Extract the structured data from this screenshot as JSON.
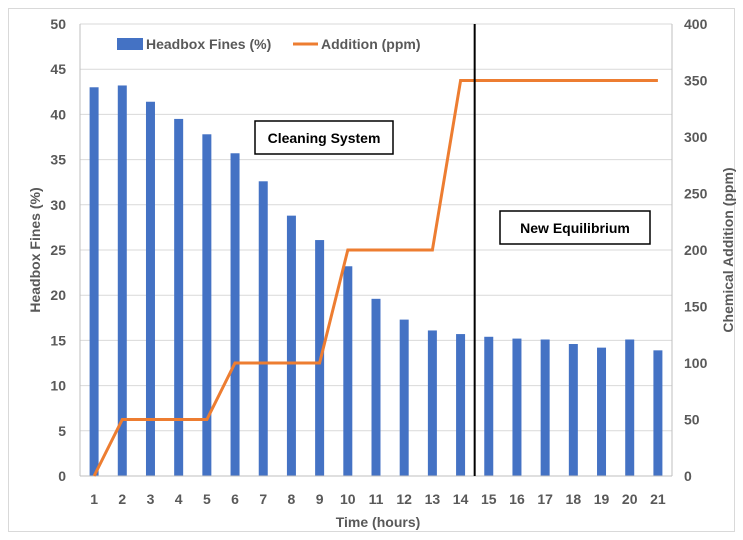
{
  "chart_data": {
    "type": "bar",
    "title": "",
    "xlabel": "Time (hours)",
    "ylabel": "Headbox Fines (%)",
    "y2label": "Chemical Addition (ppm)",
    "categories": [
      "1",
      "2",
      "3",
      "4",
      "5",
      "6",
      "7",
      "8",
      "9",
      "10",
      "11",
      "12",
      "13",
      "14",
      "15",
      "16",
      "17",
      "18",
      "19",
      "20",
      "21"
    ],
    "ylim": [
      0,
      50
    ],
    "yticks": [
      0,
      5,
      10,
      15,
      20,
      25,
      30,
      35,
      40,
      45,
      50
    ],
    "y2lim": [
      0,
      400
    ],
    "y2ticks": [
      0,
      50,
      100,
      150,
      200,
      250,
      300,
      350,
      400
    ],
    "grid": true,
    "legend_position": "top-left",
    "series": [
      {
        "name": "Headbox Fines (%)",
        "kind": "bar",
        "axis": "left",
        "color": "#4472C4",
        "values": [
          43.0,
          43.2,
          41.4,
          39.5,
          37.8,
          35.7,
          32.6,
          28.8,
          26.1,
          23.2,
          19.6,
          17.3,
          16.1,
          15.7,
          15.4,
          15.2,
          15.1,
          14.6,
          14.2,
          15.1,
          13.9
        ]
      },
      {
        "name": "Addition (ppm)",
        "kind": "line",
        "axis": "right",
        "color": "#ED7D31",
        "x": [
          1,
          2,
          5,
          6,
          9,
          10,
          13,
          14,
          21
        ],
        "values": [
          0,
          50,
          50,
          100,
          100,
          200,
          200,
          350,
          350
        ]
      }
    ],
    "annotations": [
      {
        "text": "Cleaning System"
      },
      {
        "text": "New Equilibrium"
      }
    ],
    "vertical_marker_after_category": "14"
  }
}
